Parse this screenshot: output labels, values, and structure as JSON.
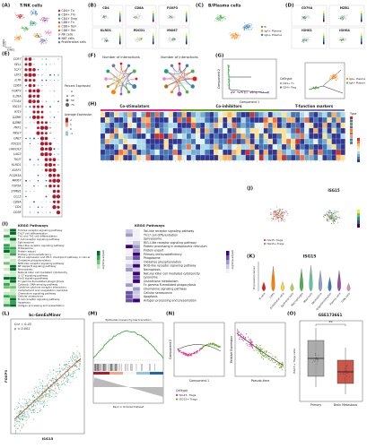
{
  "panels": {
    "A": {
      "letter": "(A)",
      "title": "T/NK cells",
      "legend": [
        "CD4+ Tn",
        "CD4+ Tm",
        "CD4+ Treg",
        "CD8+ Tn",
        "CD8+ Tem",
        "CD8+ Tex",
        "NK cells",
        "NKT cells",
        "Proliferation cells"
      ],
      "x_label": "tSNE1",
      "y_label": "tSNE2"
    },
    "B": {
      "letter": "(B)",
      "genes": [
        "CD4",
        "CD8A",
        "FOXP3",
        "KLRD1",
        "PDCD1",
        "MKI67"
      ]
    },
    "C": {
      "letter": "(C)",
      "title": "B/Plasma cells",
      "legend": [
        "B",
        "IgA+ Plasma",
        "IgG+ Plasma"
      ]
    },
    "D": {
      "letter": "(D)",
      "genes": [
        "CD79A",
        "MZB1",
        "IGHG1",
        "IGHG4"
      ]
    },
    "E": {
      "letter": "(E)",
      "genes": [
        "CCR7",
        "SELL",
        "TCF7",
        "LEF1",
        "IL7R",
        "CD69",
        "FOXP3",
        "IL2RA",
        "CTLA4",
        "ISG15",
        "IFIT3",
        "GZMK",
        "GZMB",
        "PRF1",
        "NKG7",
        "GNLY",
        "PDCD1",
        "HAVCR2",
        "LAG3",
        "TIGIT",
        "KLRD1",
        "KLRF1",
        "FCGR3A",
        "MKI67",
        "TOP2A",
        "STMN1",
        "CCL5",
        "CD8A",
        "CD4",
        "CD3E"
      ],
      "size_title": "Percent Expressed",
      "size_levels": [
        "0",
        "25",
        "50",
        "75"
      ],
      "color_title": "Average Expression",
      "color_levels": [
        "2",
        "1",
        "0",
        "-1"
      ]
    },
    "F": {
      "letter": "(F)",
      "titles": [
        "Number of interactions",
        "Number of interactions"
      ]
    },
    "G": {
      "letter": "(G)",
      "x_label": "Component 1",
      "y_label": "Component 2",
      "legend_title": "Celltype",
      "legend": [
        "CD4+ Tn",
        "CD4+ Treg",
        "IgG+ Plasma",
        "IgA+ Plasma"
      ]
    },
    "H": {
      "letter": "(H)",
      "headers": [
        "Co-stimulators",
        "Co-inhibitors",
        "T-function markers"
      ],
      "legend_title": "Type"
    },
    "I": {
      "letter": "(I)",
      "left_title": "KEGG Pathways",
      "left": [
        "Toll-like receptor signaling pathway",
        "Th17 cell differentiation",
        "Th1 and Th2 cell differentiation",
        "T cell receptor signaling pathway",
        "Spliceosome",
        "RIG-I-like receptor signaling pathway",
        "Proteasome",
        "Protein export",
        "Primary immunodeficiency",
        "PD-L1 expression and PD-1 checkpoint pathway in cancer",
        "Oxidative phosphorylation",
        "NOD-like receptor signaling pathway",
        "NF-kappa B signaling pathway",
        "Necroptosis",
        "Natural killer cell mediated cytotoxicity",
        "IL-17 signaling pathway",
        "FoxO signaling pathway",
        "Fc gamma R-mediated phagocytosis",
        "Cytosolic DNA-sensing pathway",
        "Cytokine-cytokine receptor interaction",
        "Complement and coagulation cascades",
        "Chemokine signaling pathway",
        "Cellular senescence",
        "B cell receptor signaling pathway",
        "Apoptosis",
        "Antigen processing and presentation"
      ],
      "right_title": "KEGG Pathways",
      "right": [
        "Toll-like receptor signaling pathway",
        "Th17 cell differentiation",
        "Spliceosome",
        "RIG-I-like receptor signaling pathway",
        "Protein processing in endoplasmic reticulum",
        "Protein export",
        "Primary immunodeficiency",
        "Phagosome",
        "Oxidative phosphorylation",
        "NOD-like receptor signaling pathway",
        "Necroptosis",
        "Natural killer cell mediated cytotoxicity",
        "Lysosome",
        "Glutathione metabolism",
        "Fc gamma R-mediated phagocytosis",
        "Chemokine signaling pathway",
        "Cellular senescence",
        "Apoptosis",
        "Antigen processing and presentation"
      ],
      "legend_title": "-log10(p.adjust)"
    },
    "J": {
      "letter": "(J)",
      "title": "ISG15",
      "legend": [
        "ISG15- Tregs",
        "ISG15+ Tregs"
      ]
    },
    "K": {
      "letter": "(K)",
      "title": "ISG15",
      "y_label": "Expression Level",
      "categories": [
        "B cells",
        "CAFs",
        "Endothelial cells",
        "Epithelial cells",
        "Macrophages",
        "Mast cells",
        "Neutrophils",
        "Oligodendrocytes",
        "Plasma cells",
        "T/NK cells"
      ]
    },
    "L": {
      "letter": "(L)",
      "title": "bc-GenExMiner",
      "cor": "Cor = 0.45",
      "p": "p < 0.001",
      "x_label": "ISG15",
      "y_label": "FOXP3"
    },
    "M": {
      "letter": "(M)",
      "title": "Epithelial mesenchymal transition",
      "x_label": "Rank in Ordered Dataset"
    },
    "N": {
      "letter": "(N)",
      "x_label": "Component 1",
      "y_label": "Component 2",
      "x2_label": "Pseudo-time",
      "y2_label": "Relative Expression",
      "legend_title": "Celltype",
      "legend": [
        "ISG15- Tregs",
        "ISG15+ Tregs"
      ]
    },
    "O": {
      "letter": "(O)",
      "title": "GSE173661",
      "categories": [
        "Primary",
        "Brain Metastasis"
      ],
      "y_label": "ISG15+ Tregs ratio",
      "sig": "**"
    }
  }
}
